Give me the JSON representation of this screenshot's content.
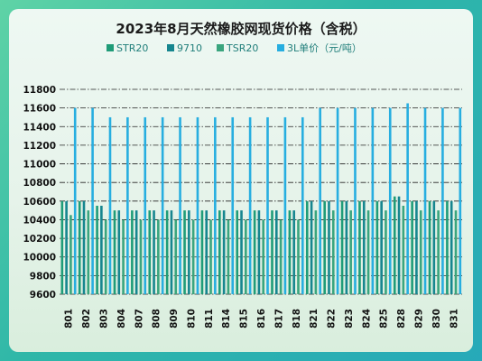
{
  "chart_data": {
    "type": "bar",
    "title": "2023年8月天然橡胶网现货价格（含税）",
    "categories": [
      "801",
      "802",
      "803",
      "804",
      "807",
      "808",
      "809",
      "810",
      "811",
      "814",
      "815",
      "816",
      "817",
      "818",
      "821",
      "822",
      "823",
      "824",
      "825",
      "828",
      "829",
      "830",
      "831"
    ],
    "series": [
      {
        "name": "STR20",
        "color": "#1f9c78",
        "values": [
          10600,
          10600,
          10550,
          10500,
          10500,
          10500,
          10500,
          10500,
          10500,
          10500,
          10500,
          10500,
          10500,
          10500,
          10600,
          10600,
          10600,
          10600,
          10600,
          10650,
          10600,
          10600,
          10600
        ]
      },
      {
        "name": "9710",
        "color": "#16868f",
        "values": [
          10600,
          10600,
          10550,
          10500,
          10500,
          10500,
          10500,
          10500,
          10500,
          10500,
          10500,
          10500,
          10500,
          10500,
          10600,
          10600,
          10600,
          10600,
          10600,
          10650,
          10600,
          10600,
          10600
        ]
      },
      {
        "name": "TSR20",
        "color": "#3aa57e",
        "values": [
          10450,
          10500,
          10400,
          10400,
          10400,
          10400,
          10400,
          10400,
          10400,
          10400,
          10400,
          10400,
          10400,
          10400,
          10500,
          10500,
          10500,
          10500,
          10500,
          10550,
          10500,
          10500,
          10500
        ]
      },
      {
        "name": "3L单价（元/吨）",
        "color": "#27aee0",
        "values": [
          11600,
          11600,
          11500,
          11500,
          11500,
          11500,
          11500,
          11500,
          11500,
          11500,
          11500,
          11500,
          11500,
          11500,
          11600,
          11600,
          11600,
          11600,
          11600,
          11650,
          11600,
          11600,
          11600
        ]
      }
    ],
    "y_ticks": [
      "11800",
      "11600",
      "11400",
      "11200",
      "11000",
      "10800",
      "10600",
      "10400",
      "10200",
      "10000",
      "9800",
      "9600"
    ],
    "ylim": [
      9600,
      11800
    ],
    "grid": true,
    "legend_position": "top"
  }
}
